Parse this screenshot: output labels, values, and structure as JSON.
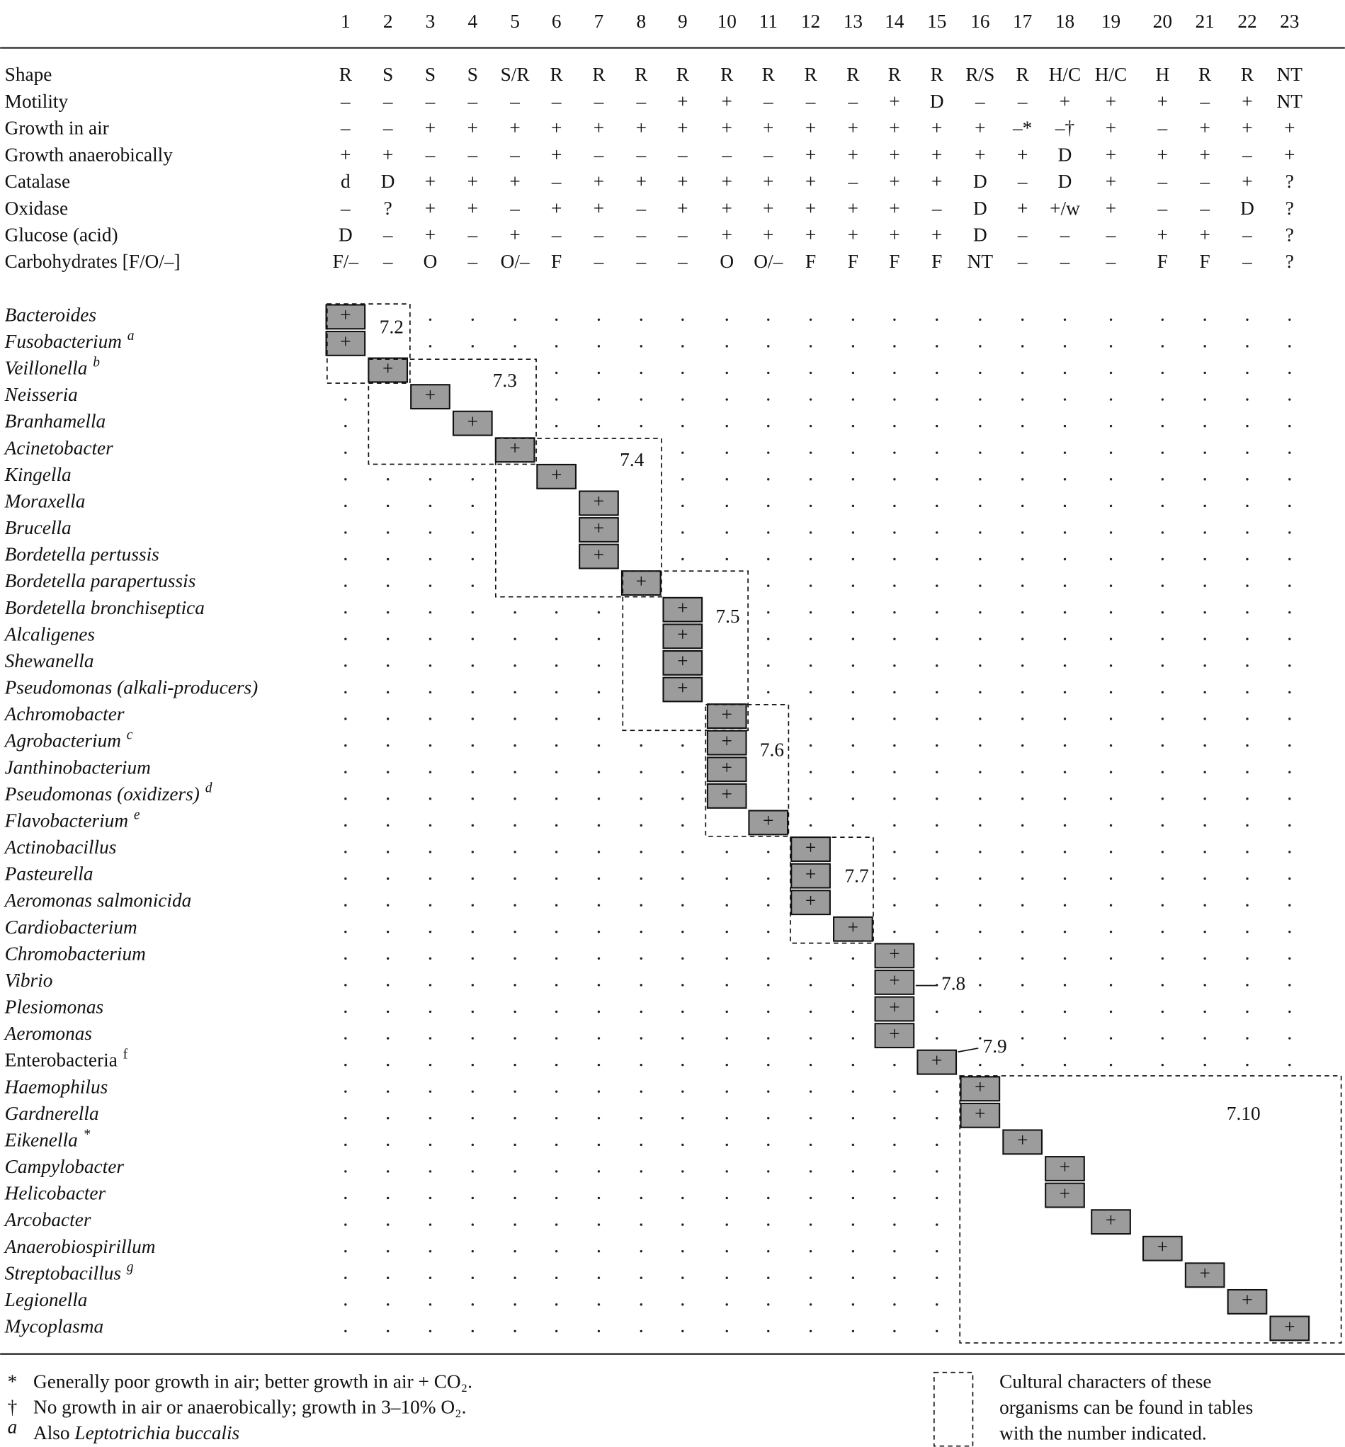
{
  "columns": [
    1,
    2,
    3,
    4,
    5,
    6,
    7,
    8,
    9,
    10,
    11,
    12,
    13,
    14,
    15,
    16,
    17,
    18,
    19,
    20,
    21,
    22,
    23
  ],
  "characteristics": [
    {
      "label": "Shape",
      "values": [
        "R",
        "S",
        "S",
        "S",
        "S/R",
        "R",
        "R",
        "R",
        "R",
        "R",
        "R",
        "R",
        "R",
        "R",
        "R",
        "R/S",
        "R",
        "H/C",
        "H/C",
        "H",
        "R",
        "R",
        "NT"
      ]
    },
    {
      "label": "Motility",
      "values": [
        "–",
        "–",
        "–",
        "–",
        "–",
        "–",
        "–",
        "–",
        "+",
        "+",
        "–",
        "–",
        "–",
        "+",
        "D",
        "–",
        "–",
        "+",
        "+",
        "+",
        "–",
        "+",
        "NT"
      ]
    },
    {
      "label": "Growth in air",
      "values": [
        "–",
        "–",
        "+",
        "+",
        "+",
        "+",
        "+",
        "+",
        "+",
        "+",
        "+",
        "+",
        "+",
        "+",
        "+",
        "+",
        "–*",
        "–†",
        "+",
        "–",
        "+",
        "+",
        "+"
      ]
    },
    {
      "label": "Growth anaerobically",
      "values": [
        "+",
        "+",
        "–",
        "–",
        "–",
        "+",
        "–",
        "–",
        "–",
        "–",
        "–",
        "+",
        "+",
        "+",
        "+",
        "+",
        "+",
        "D",
        "+",
        "+",
        "+",
        "–",
        "+"
      ]
    },
    {
      "label": "Catalase",
      "values": [
        "d",
        "D",
        "+",
        "+",
        "+",
        "–",
        "+",
        "+",
        "+",
        "+",
        "+",
        "+",
        "–",
        "+",
        "+",
        "D",
        "–",
        "D",
        "+",
        "–",
        "–",
        "+",
        "?"
      ]
    },
    {
      "label": "Oxidase",
      "values": [
        "–",
        "?",
        "+",
        "+",
        "–",
        "+",
        "+",
        "–",
        "+",
        "+",
        "+",
        "+",
        "+",
        "+",
        "–",
        "D",
        "+",
        "+/w",
        "+",
        "–",
        "–",
        "D",
        "?"
      ]
    },
    {
      "label": "Glucose (acid)",
      "values": [
        "D",
        "–",
        "+",
        "–",
        "+",
        "–",
        "–",
        "–",
        "–",
        "+",
        "+",
        "+",
        "+",
        "+",
        "+",
        "D",
        "–",
        "–",
        "–",
        "+",
        "+",
        "–",
        "?"
      ]
    },
    {
      "label": "Carbohydrates [F/O/–]",
      "values": [
        "F/–",
        "–",
        "O",
        "–",
        "O/–",
        "F",
        "–",
        "–",
        "–",
        "O",
        "O/–",
        "F",
        "F",
        "F",
        "F",
        "NT",
        "–",
        "–",
        "–",
        "F",
        "F",
        "–",
        "?"
      ]
    }
  ],
  "organisms": [
    {
      "name": "Bacteroides",
      "column": 1,
      "result": "+"
    },
    {
      "name": "Fusobacterium",
      "note": "a",
      "column": 1,
      "result": "+"
    },
    {
      "name": "Veillonella",
      "note": "b",
      "column": 2,
      "result": "+"
    },
    {
      "name": "Neisseria",
      "column": 3,
      "result": "+"
    },
    {
      "name": "Branhamella",
      "column": 4,
      "result": "+"
    },
    {
      "name": "Acinetobacter",
      "column": 5,
      "result": "+"
    },
    {
      "name": "Kingella",
      "column": 6,
      "result": "+"
    },
    {
      "name": "Moraxella",
      "column": 7,
      "result": "+"
    },
    {
      "name": "Brucella",
      "column": 7,
      "result": "+"
    },
    {
      "name": "Bordetella pertussis",
      "column": 7,
      "result": "+"
    },
    {
      "name": "Bordetella parapertussis",
      "column": 8,
      "result": "+"
    },
    {
      "name": "Bordetella bronchiseptica",
      "column": 9,
      "result": "+"
    },
    {
      "name": "Alcaligenes",
      "column": 9,
      "result": "+"
    },
    {
      "name": "Shewanella",
      "column": 9,
      "result": "+"
    },
    {
      "name": "Pseudomonas (alkali-producers)",
      "column": 9,
      "result": "+"
    },
    {
      "name": "Achromobacter",
      "column": 10,
      "result": "+"
    },
    {
      "name": "Agrobacterium",
      "note": "c",
      "column": 10,
      "result": "+"
    },
    {
      "name": "Janthinobacterium",
      "column": 10,
      "result": "+"
    },
    {
      "name": "Pseudomonas (oxidizers)",
      "note": "d",
      "column": 10,
      "result": "+"
    },
    {
      "name": "Flavobacterium",
      "note": "e",
      "column": 11,
      "result": "+"
    },
    {
      "name": "Actinobacillus",
      "column": 12,
      "result": "+"
    },
    {
      "name": "Pasteurella",
      "column": 12,
      "result": "+"
    },
    {
      "name": "Aeromonas salmonicida",
      "column": 12,
      "result": "+"
    },
    {
      "name": "Cardiobacterium",
      "column": 13,
      "result": "+"
    },
    {
      "name": "Chromobacterium",
      "column": 14,
      "result": "+"
    },
    {
      "name": "Vibrio",
      "column": 14,
      "result": "+"
    },
    {
      "name": "Plesiomonas",
      "column": 14,
      "result": "+"
    },
    {
      "name": "Aeromonas",
      "column": 14,
      "result": "+"
    },
    {
      "name": "Enterobacteria",
      "note": "f",
      "style": "roman",
      "column": 15,
      "result": "+"
    },
    {
      "name": "Haemophilus",
      "column": 16,
      "result": "+"
    },
    {
      "name": "Gardnerella",
      "column": 16,
      "result": "+"
    },
    {
      "name": "Eikenella",
      "note": "*",
      "column": 17,
      "result": "+"
    },
    {
      "name": "Campylobacter",
      "column": 18,
      "result": "+"
    },
    {
      "name": "Helicobacter",
      "column": 18,
      "result": "+"
    },
    {
      "name": "Arcobacter",
      "column": 19,
      "result": "+"
    },
    {
      "name": "Anaerobiospirillum",
      "column": 20,
      "result": "+"
    },
    {
      "name": "Streptobacillus",
      "note": "g",
      "column": 21,
      "result": "+"
    },
    {
      "name": "Legionella",
      "column": 22,
      "result": "+"
    },
    {
      "name": "Mycoplasma",
      "column": 23,
      "result": "+"
    }
  ],
  "groups": [
    "7.2",
    "7.3",
    "7.4",
    "7.5",
    "7.6",
    "7.7",
    "7.8",
    "7.9",
    "7.10"
  ],
  "footnotes": [
    {
      "symbol": "*",
      "text": "Generally poor growth in air; better growth in air + CO₂."
    },
    {
      "symbol": "†",
      "text": "No growth in air or anaerobically; growth in 3–10% O₂."
    },
    {
      "symbol": "a",
      "text": "Also ",
      "italic": "Leptotrichia buccalis"
    }
  ],
  "legend": [
    "Cultural characters of these",
    "organisms can be found in tables",
    "with the number indicated."
  ]
}
